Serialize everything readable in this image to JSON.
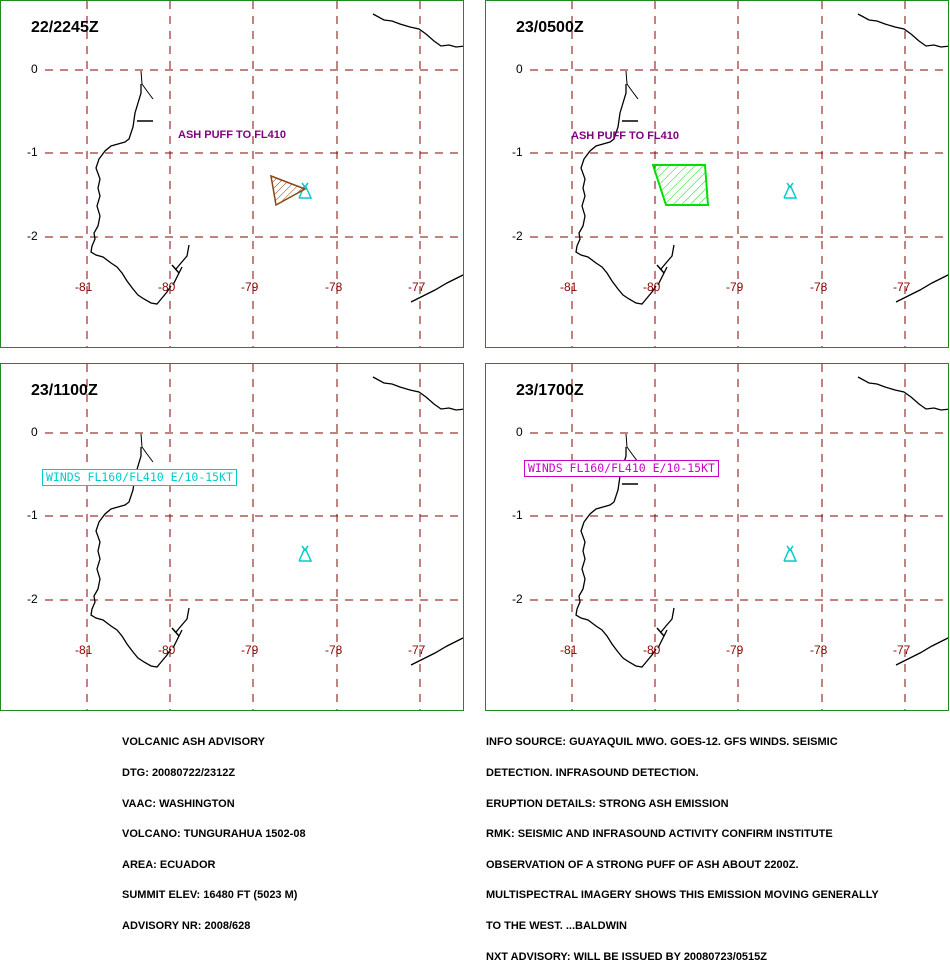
{
  "panels": [
    {
      "time": "22/2245Z",
      "annotation": "ASH PUFF TO FL410",
      "winds": ""
    },
    {
      "time": "23/0500Z",
      "annotation": "ASH PUFF TO FL410",
      "winds": ""
    },
    {
      "time": "23/1100Z",
      "annotation": "",
      "winds": "WINDS FL160/FL410 E/10-15KT"
    },
    {
      "time": "23/1700Z",
      "annotation": "",
      "winds": "WINDS FL160/FL410 E/10-15KT"
    }
  ],
  "lat_labels": [
    "0",
    "-1",
    "-2"
  ],
  "lon_labels": [
    "-81",
    "-80",
    "-79",
    "-78",
    "-77"
  ],
  "colors": {
    "panel_border": "#1f8a1f",
    "grid": "#8b0000",
    "ash_obs": "#8b4513",
    "ash_fcst": "#00dd00",
    "volcano": "#00cccc",
    "annotation": "#800080",
    "winds_cyan": "#00cccc",
    "winds_magenta": "#cc00cc"
  },
  "advisory_left": [
    "VOLCANIC ASH ADVISORY",
    "DTG: 20080722/2312Z",
    "VAAC: WASHINGTON",
    "VOLCANO: TUNGURAHUA 1502-08",
    "AREA: ECUADOR",
    "SUMMIT ELEV: 16480 FT (5023 M)",
    "ADVISORY NR: 2008/628"
  ],
  "advisory_right": [
    "INFO SOURCE: GUAYAQUIL MWO. GOES-12. GFS WINDS. SEISMIC",
    "DETECTION. INFRASOUND DETECTION.",
    "ERUPTION DETAILS: STRONG ASH EMISSION",
    "RMK: SEISMIC AND INFRASOUND ACTIVITY CONFIRM INSTITUTE",
    "OBSERVATION OF A STRONG PUFF OF ASH ABOUT 2200Z.",
    "MULTISPECTRAL IMAGERY SHOWS THIS EMISSION MOVING GENERALLY",
    "TO THE WEST. ...BALDWIN",
    "NXT ADVISORY: WILL BE ISSUED BY 20080723/0515Z"
  ]
}
